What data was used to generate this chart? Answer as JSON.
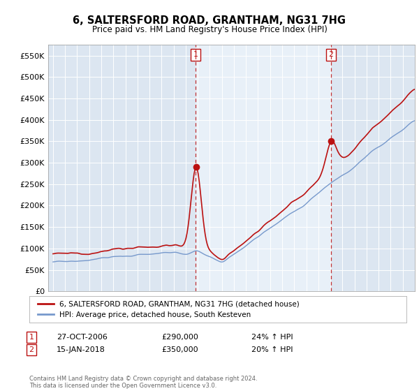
{
  "title": "6, SALTERSFORD ROAD, GRANTHAM, NG31 7HG",
  "subtitle": "Price paid vs. HM Land Registry's House Price Index (HPI)",
  "ylim": [
    0,
    575000
  ],
  "yticks": [
    0,
    50000,
    100000,
    150000,
    200000,
    250000,
    300000,
    350000,
    400000,
    450000,
    500000,
    550000
  ],
  "ytick_labels": [
    "£0",
    "£50K",
    "£100K",
    "£150K",
    "£200K",
    "£250K",
    "£300K",
    "£350K",
    "£400K",
    "£450K",
    "£500K",
    "£550K"
  ],
  "bg_color": "#dce6f1",
  "highlight_color": "#e8f0f8",
  "line1_color": "#bb1111",
  "line2_color": "#7799cc",
  "transaction1_value": 290000,
  "transaction1_year": 2006.83,
  "transaction2_value": 350000,
  "transaction2_year": 2018.04,
  "legend_line1": "6, SALTERSFORD ROAD, GRANTHAM, NG31 7HG (detached house)",
  "legend_line2": "HPI: Average price, detached house, South Kesteven",
  "annotation1_date": "27-OCT-2006",
  "annotation1_price": "£290,000",
  "annotation1_hpi": "24% ↑ HPI",
  "annotation2_date": "15-JAN-2018",
  "annotation2_price": "£350,000",
  "annotation2_hpi": "20% ↑ HPI",
  "footer": "Contains HM Land Registry data © Crown copyright and database right 2024.\nThis data is licensed under the Open Government Licence v3.0.",
  "xstart_year": 1995,
  "xend_year": 2024
}
